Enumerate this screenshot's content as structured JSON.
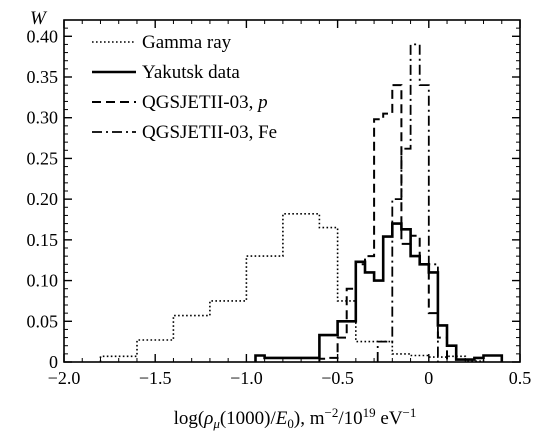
{
  "chart_data": {
    "type": "line",
    "ylabel": "W",
    "xlabel": "log(ρ_μ(1000)/E_0), m^-2/10^19 eV^-1",
    "xlim": [
      -2.0,
      0.5
    ],
    "ylim": [
      0,
      0.42
    ],
    "x_ticks": [
      {
        "value": -2.0,
        "label": "−2.0"
      },
      {
        "value": -1.5,
        "label": "−1.5"
      },
      {
        "value": -1.0,
        "label": "−1.0"
      },
      {
        "value": -0.5,
        "label": "−0.5"
      },
      {
        "value": 0.0,
        "label": "0"
      },
      {
        "value": 0.5,
        "label": "0.5"
      }
    ],
    "y_ticks": [
      {
        "value": 0,
        "label": "0"
      },
      {
        "value": 0.05,
        "label": "0.05"
      },
      {
        "value": 0.1,
        "label": "0.10"
      },
      {
        "value": 0.15,
        "label": "0.15"
      },
      {
        "value": 0.2,
        "label": "0.20"
      },
      {
        "value": 0.25,
        "label": "0.25"
      },
      {
        "value": 0.3,
        "label": "0.30"
      },
      {
        "value": 0.35,
        "label": "0.35"
      },
      {
        "value": 0.4,
        "label": "0.40"
      }
    ],
    "legend_position": "top-left",
    "series": [
      {
        "name": "Gamma ray",
        "style": "dotted",
        "edges": [
          -1.8,
          -1.6,
          -1.4,
          -1.2,
          -1.0,
          -0.8,
          -0.6,
          -0.5,
          -0.4,
          -0.3,
          -0.2,
          -0.1,
          0.0,
          0.1,
          0.2,
          0.3,
          0.4
        ],
        "values": [
          0.007,
          0.027,
          0.057,
          0.075,
          0.13,
          0.182,
          0.165,
          0.075,
          0.025,
          0.025,
          0.01,
          0.008,
          0.006,
          0.007,
          0.001,
          0.008
        ]
      },
      {
        "name": "Yakutsk data",
        "style": "solid",
        "edges": [
          -0.95,
          -0.9,
          -0.8,
          -0.7,
          -0.6,
          -0.5,
          -0.4,
          -0.35,
          -0.3,
          -0.25,
          -0.2,
          -0.15,
          -0.1,
          -0.05,
          0.0,
          0.05,
          0.1,
          0.15,
          0.25,
          0.3,
          0.4
        ],
        "values": [
          0.008,
          0.005,
          0.005,
          0.005,
          0.033,
          0.05,
          0.123,
          0.11,
          0.1,
          0.154,
          0.17,
          0.163,
          0.13,
          0.12,
          0.11,
          0.045,
          0.02,
          0.003,
          0.005,
          0.008
        ]
      },
      {
        "name": "QGSJETII-03, p",
        "style": "dashed",
        "edges": [
          -0.6,
          -0.55,
          -0.5,
          -0.45,
          -0.4,
          -0.35,
          -0.3,
          -0.25,
          -0.2,
          -0.15,
          -0.1,
          -0.05,
          0.0,
          0.05,
          0.1
        ],
        "values": [
          0.004,
          0.005,
          0.03,
          0.09,
          0.12,
          0.13,
          0.298,
          0.305,
          0.34,
          0.145,
          0.155,
          0.12,
          0.06,
          0.03
        ]
      },
      {
        "name": "QGSJETII-03, Fe",
        "style": "dashdot",
        "edges": [
          -0.28,
          -0.2,
          -0.15,
          -0.1,
          -0.05,
          0.0,
          0.05
        ],
        "values": [
          0.025,
          0.2,
          0.262,
          0.39,
          0.34,
          0.12
        ]
      }
    ]
  }
}
